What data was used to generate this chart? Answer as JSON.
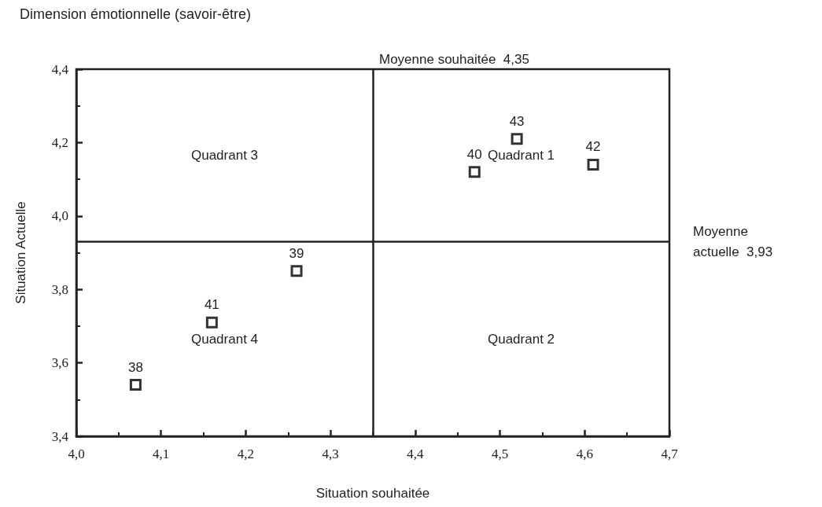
{
  "chart_data": {
    "type": "scatter",
    "title": "Dimension émotionnelle (savoir-être)",
    "xlabel": "Situation souhaitée",
    "ylabel": "Situation Actuelle",
    "x": [
      4.07,
      4.26,
      4.47,
      4.16,
      4.61,
      4.52
    ],
    "values": [
      3.54,
      3.85,
      4.12,
      3.71,
      4.14,
      4.21
    ],
    "color": "#000000",
    "marker": "square",
    "grid": false,
    "xlim": [
      4.0,
      4.7
    ],
    "xticks": [
      {
        "value": 4.0,
        "label": "4,0"
      },
      {
        "value": 4.1,
        "label": "4,1"
      },
      {
        "value": 4.2,
        "label": "4,2"
      },
      {
        "value": 4.3,
        "label": "4,3"
      },
      {
        "value": 4.4,
        "label": "4,4"
      },
      {
        "value": 4.5,
        "label": "4,5"
      },
      {
        "value": 4.6,
        "label": "4,6"
      },
      {
        "value": 4.7,
        "label": "4,7"
      }
    ],
    "ylim": [
      3.4,
      4.4
    ],
    "yticks": [
      {
        "value": 3.4,
        "label": "3,4"
      },
      {
        "value": 3.6,
        "label": "3,6"
      },
      {
        "value": 3.8,
        "label": "3,8"
      },
      {
        "value": 4.0,
        "label": "4,0"
      },
      {
        "value": 4.2,
        "label": "4,2"
      },
      {
        "value": 4.4,
        "label": "4,4"
      }
    ],
    "ref_lines": [
      {
        "axis": "x",
        "value": 4.35,
        "label": "Moyenne souhaitée  4,35"
      },
      {
        "axis": "y",
        "value": 3.93,
        "label": "Moyenne actuelle  3,93"
      }
    ],
    "annotations": [
      {
        "text": "38",
        "x": 4.07,
        "y": 3.54
      },
      {
        "text": "39",
        "x": 4.26,
        "y": 3.85
      },
      {
        "text": "40",
        "x": 4.47,
        "y": 4.12
      },
      {
        "text": "41",
        "x": 4.16,
        "y": 3.71
      },
      {
        "text": "42",
        "x": 4.61,
        "y": 4.14
      },
      {
        "text": "43",
        "x": 4.52,
        "y": 4.21
      },
      "Quadrant 3",
      "Quadrant 1",
      "Quadrant 4",
      "Quadrant 2"
    ]
  }
}
